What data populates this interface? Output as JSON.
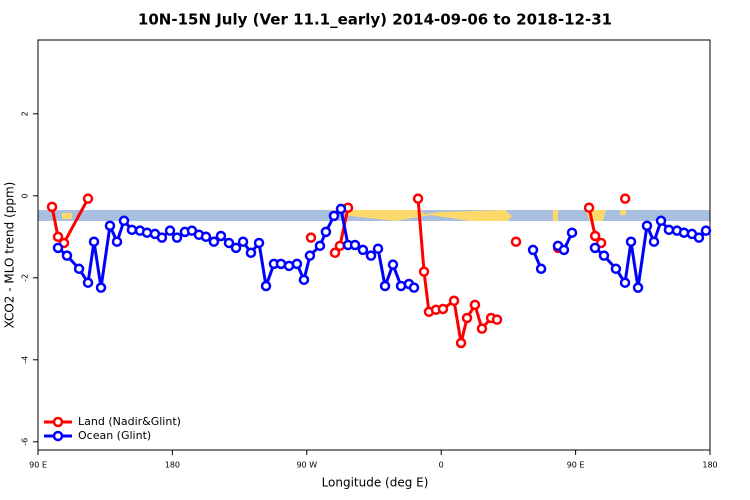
{
  "chart_data": {
    "type": "line",
    "title": "10N-15N July (Ver 11.1_early)   2014-09-06 to 2018-12-31",
    "x_label": "Longitude (deg E)",
    "y_label": "XCO2 - MLO trend (ppm)",
    "xlim": [
      90,
      540
    ],
    "xticks": [
      {
        "value": 90,
        "label": "90 E"
      },
      180,
      {
        "value": 270,
        "label": "90 W"
      },
      {
        "value": 360,
        "label": "0"
      },
      {
        "value": 450,
        "label": "90 E"
      },
      {
        "value": 540,
        "label": "180"
      }
    ],
    "ylim": [
      -6.2,
      3.8
    ],
    "yticks": [
      -6,
      -4,
      -2,
      0,
      2
    ],
    "legend": "bottom-left",
    "series": [
      {
        "name": "Land (Nadir&Glint)",
        "color": "#ff0000",
        "x": [
          99.4,
          103.4,
          107.4,
          123.5,
          null,
          272.8,
          null,
          288.9,
          292.2,
          297.6,
          null,
          344.5,
          348.5,
          351.8,
          356.5,
          361.2,
          368.6,
          373.3,
          377.3,
          382.6,
          387.3,
          393.4,
          397.4,
          null,
          410.1,
          null,
          438.3,
          null,
          459.0,
          463.1,
          467.1,
          null,
          483.2
        ],
        "values": [
          -0.27,
          -1.0,
          -1.15,
          -0.07,
          null,
          -1.02,
          null,
          -1.39,
          -1.22,
          -0.29,
          null,
          -0.07,
          -1.85,
          -2.83,
          -2.78,
          -2.76,
          -2.56,
          -3.59,
          -2.98,
          -2.66,
          -3.24,
          -2.98,
          -3.02,
          null,
          -1.12,
          null,
          -1.27,
          null,
          -0.29,
          -0.98,
          -1.15,
          null,
          -0.07
        ]
      },
      {
        "name": "Ocean (Glint)",
        "color": "#0000ff",
        "x": [
          103.4,
          109.4,
          117.5,
          123.5,
          127.5,
          132.2,
          138.2,
          142.9,
          147.6,
          152.9,
          158.3,
          163.0,
          168.3,
          173.0,
          178.4,
          183.1,
          188.4,
          193.1,
          197.8,
          202.5,
          207.8,
          212.5,
          217.9,
          222.6,
          227.3,
          232.6,
          238.0,
          242.7,
          248.0,
          252.7,
          258.1,
          263.4,
          268.1,
          272.1,
          278.8,
          282.8,
          288.2,
          292.9,
          297.6,
          302.3,
          307.6,
          313.0,
          317.7,
          322.4,
          327.7,
          333.1,
          338.4,
          341.8,
          null,
          421.5,
          426.9,
          null,
          438.2,
          442.2,
          447.6,
          null,
          463.0,
          469.0,
          477.0,
          483.1,
          487.1,
          491.8,
          497.8,
          502.5,
          507.2,
          512.5,
          517.9,
          522.6,
          527.9,
          532.6,
          537.3
        ],
        "values": [
          -1.27,
          -1.46,
          -1.78,
          -2.12,
          -1.12,
          -2.24,
          -0.73,
          -1.12,
          -0.61,
          -0.83,
          -0.85,
          -0.9,
          -0.93,
          -1.02,
          -0.85,
          -1.02,
          -0.88,
          -0.85,
          -0.95,
          -1.0,
          -1.12,
          -0.98,
          -1.15,
          -1.27,
          -1.12,
          -1.39,
          -1.15,
          -2.2,
          -1.66,
          -1.66,
          -1.71,
          -1.66,
          -2.05,
          -1.46,
          -1.22,
          -0.88,
          -0.49,
          -0.32,
          -1.2,
          -1.2,
          -1.32,
          -1.46,
          -1.29,
          -2.2,
          -1.68,
          -2.2,
          -2.15,
          -2.24,
          null,
          -1.32,
          -1.78,
          null,
          -1.22,
          -1.32,
          -0.9,
          null,
          -1.27,
          -1.46,
          -1.78,
          -2.12,
          -1.12,
          -2.24,
          -0.73,
          -1.12,
          -0.61,
          -0.83,
          -0.85,
          -0.9,
          -0.93,
          -1.02,
          -0.85
        ]
      }
    ]
  }
}
